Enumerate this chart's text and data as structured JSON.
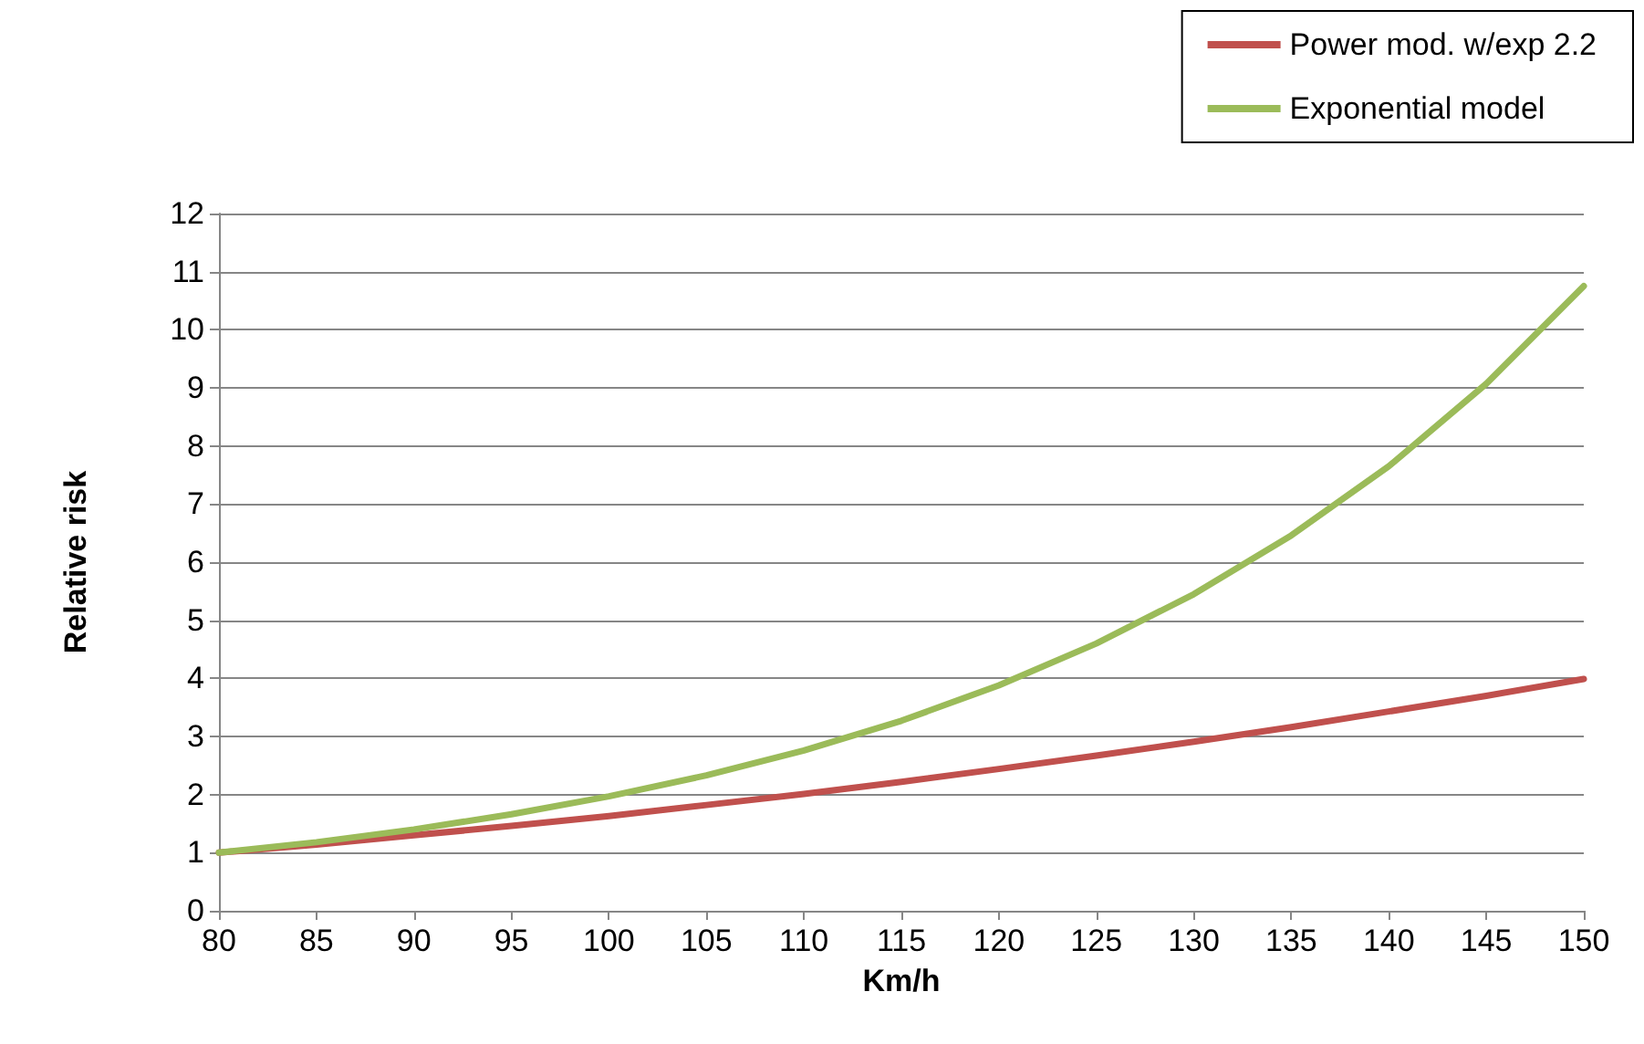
{
  "chart_data": {
    "type": "line",
    "xlabel": "Km/h",
    "ylabel": "Relative risk",
    "x": [
      80,
      85,
      90,
      95,
      100,
      105,
      110,
      115,
      120,
      125,
      130,
      135,
      140,
      145,
      150
    ],
    "series": [
      {
        "name": "Power mod. w/exp 2.2",
        "color": "#c0504d",
        "values": [
          1,
          1.14,
          1.3,
          1.46,
          1.63,
          1.82,
          2.01,
          2.22,
          2.44,
          2.67,
          2.91,
          3.16,
          3.43,
          3.7,
          3.99
        ]
      },
      {
        "name": "Exponential model",
        "color": "#9bbb59",
        "values": [
          1,
          1.18,
          1.4,
          1.66,
          1.97,
          2.33,
          2.76,
          3.27,
          3.88,
          4.6,
          5.45,
          6.46,
          7.65,
          9.07,
          10.75
        ]
      }
    ],
    "xlim": [
      80,
      150
    ],
    "xticks": [
      80,
      85,
      90,
      95,
      100,
      105,
      110,
      115,
      120,
      125,
      130,
      135,
      140,
      145,
      150
    ],
    "ylim": [
      0,
      12
    ],
    "yticks": [
      0,
      1,
      2,
      3,
      4,
      5,
      6,
      7,
      8,
      9,
      10,
      11,
      12
    ],
    "grid": "y",
    "legend": "top right",
    "marker": "none",
    "line_style": "solid"
  }
}
